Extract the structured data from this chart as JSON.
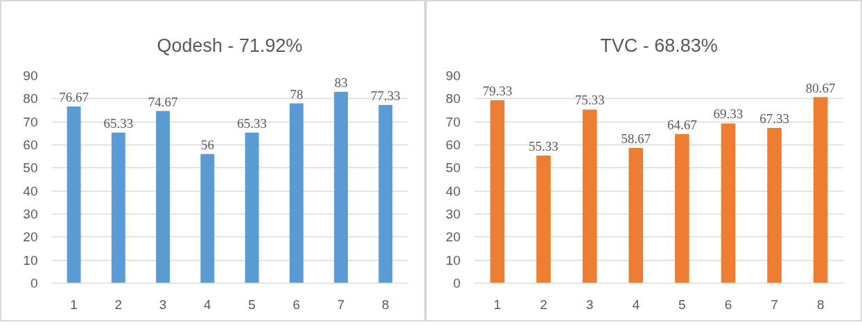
{
  "chart_data": [
    {
      "type": "bar",
      "title": "Qodesh - 71.92%",
      "categories": [
        "1",
        "2",
        "3",
        "4",
        "5",
        "6",
        "7",
        "8"
      ],
      "values": [
        76.67,
        65.33,
        74.67,
        56,
        65.33,
        78,
        83,
        77.33
      ],
      "color": "#5b9bd5",
      "ylim": [
        0,
        90
      ],
      "yticks": [
        0,
        10,
        20,
        30,
        40,
        50,
        60,
        70,
        80,
        90
      ],
      "grid": "y",
      "data_labels": true
    },
    {
      "type": "bar",
      "title": "TVC - 68.83%",
      "categories": [
        "1",
        "2",
        "3",
        "4",
        "5",
        "6",
        "7",
        "8"
      ],
      "values": [
        79.33,
        55.33,
        75.33,
        58.67,
        64.67,
        69.33,
        67.33,
        80.67
      ],
      "color": "#ed7d31",
      "ylim": [
        0,
        90
      ],
      "yticks": [
        0,
        10,
        20,
        30,
        40,
        50,
        60,
        70,
        80,
        90
      ],
      "grid": "y",
      "data_labels": true
    }
  ]
}
